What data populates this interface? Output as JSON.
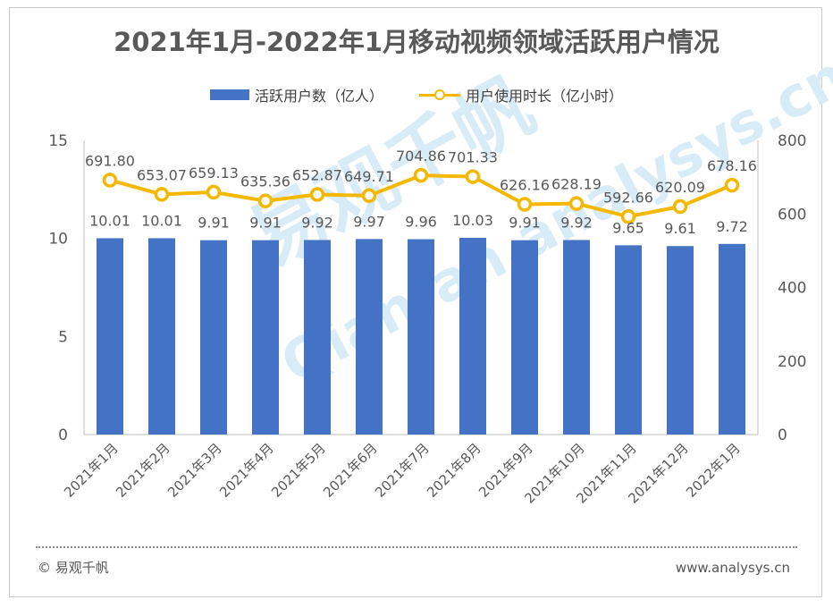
{
  "title": "2021年1月-2022年1月移动视频领域活跃用户情况",
  "footer": {
    "copyright": "© 易观千帆",
    "website": "www.analysys.cn"
  },
  "watermark": {
    "brand": "易观千帆",
    "domain": "Qianfan.analysys.cn"
  },
  "colors": {
    "bar": "#4472c4",
    "line": "#f5b800"
  },
  "chart_data": {
    "type": "bar",
    "title": "2021年1月-2022年1月移动视频领域活跃用户情况",
    "categories": [
      "2021年1月",
      "2021年2月",
      "2021年3月",
      "2021年4月",
      "2021年5月",
      "2021年6月",
      "2021年7月",
      "2021年8月",
      "2021年9月",
      "2021年10月",
      "2021年11月",
      "2021年12月",
      "2022年1月"
    ],
    "series": [
      {
        "name": "活跃用户数（亿人）",
        "type": "bar",
        "axis": "left",
        "values": [
          10.01,
          10.01,
          9.91,
          9.91,
          9.92,
          9.97,
          9.96,
          10.03,
          9.91,
          9.92,
          9.65,
          9.61,
          9.72
        ],
        "labels": [
          "10.01",
          "10.01",
          "9.91",
          "9.91",
          "9.92",
          "9.97",
          "9.96",
          "10.03",
          "9.91",
          "9.92",
          "9.65",
          "9.61",
          "9.72"
        ]
      },
      {
        "name": "用户使用时长（亿小时）",
        "type": "line",
        "axis": "right",
        "values": [
          691.8,
          653.07,
          659.13,
          635.36,
          652.87,
          649.71,
          704.86,
          701.33,
          626.16,
          628.19,
          592.66,
          620.09,
          678.16
        ],
        "labels": [
          "691.80",
          "653.07",
          "659.13",
          "635.36",
          "652.87",
          "649.71",
          "704.86",
          "701.33",
          "626.16",
          "628.19",
          "592.66",
          "620.09",
          "678.16"
        ]
      }
    ],
    "y_left": {
      "min": 0,
      "max": 15,
      "ticks": [
        0,
        5,
        10,
        15
      ]
    },
    "y_right": {
      "min": 0,
      "max": 800,
      "ticks": [
        0,
        200,
        400,
        600,
        800
      ]
    },
    "legend_position": "top-center",
    "grid": false
  }
}
